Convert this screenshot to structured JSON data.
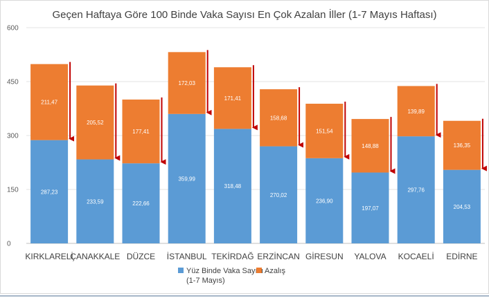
{
  "chart_data": {
    "type": "bar",
    "stacked": true,
    "title": "Geçen Haftaya Göre 100 Binde Vaka Sayısı En Çok Azalan İller (1-7 Mayıs Haftası)",
    "xlabel": "",
    "ylabel": "",
    "ylim": [
      0,
      600
    ],
    "yticks": [
      "0",
      "150",
      "300",
      "450",
      "600"
    ],
    "grid": true,
    "legend_position": "bottom",
    "categories": [
      "KIRKLARELİ",
      "ÇANAKKALE",
      "DÜZCE",
      "İSTANBUL",
      "TEKİRDAĞ",
      "ERZİNCAN",
      "GİRESUN",
      "YALOVA",
      "KOCAELİ",
      "EDİRNE"
    ],
    "series": [
      {
        "name": "Yüz Binde Vaka Sayısı (1-7 Mayıs)",
        "legend_lines": [
          "Yüz Binde Vaka Sayısı",
          "(1-7 Mayıs)"
        ],
        "color": "#5b9bd5",
        "values": [
          287.23,
          233.59,
          222.66,
          359.99,
          318.48,
          270.02,
          236.9,
          197.07,
          297.76,
          204.53
        ],
        "labels": [
          "287,23",
          "233,59",
          "222,66",
          "359,99",
          "318,48",
          "270,02",
          "236,90",
          "197,07",
          "297,76",
          "204,53"
        ]
      },
      {
        "name": "Azalış",
        "legend_lines": [
          "Azalış"
        ],
        "color": "#ed7d31",
        "values": [
          211.47,
          205.52,
          177.41,
          172.03,
          171.41,
          158.68,
          151.54,
          148.88,
          139.89,
          136.35
        ],
        "labels": [
          "211,47",
          "205,52",
          "177,41",
          "172,03",
          "171,41",
          "158,68",
          "151,54",
          "148,88",
          "139,89",
          "136,35"
        ]
      }
    ],
    "arrow_color": "#c00000"
  }
}
